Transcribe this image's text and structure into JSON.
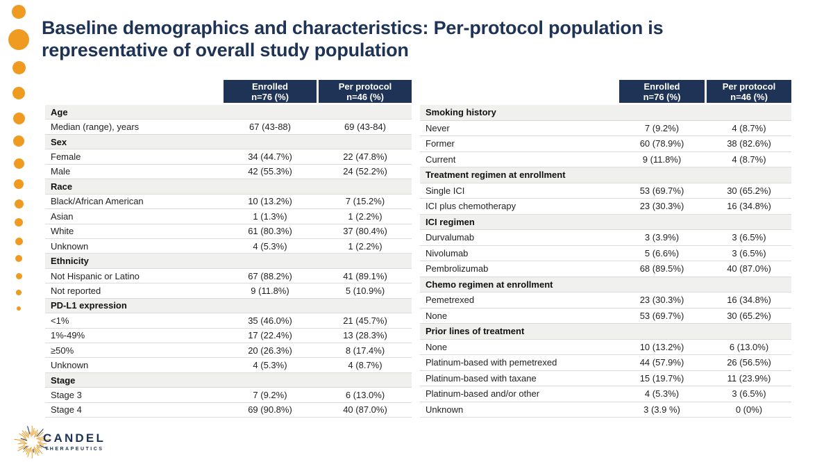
{
  "title": "Baseline demographics and characteristics: Per-protocol population is representative of overall study population",
  "columns": {
    "enrolled_top": "Enrolled",
    "enrolled_bottom": "n=76 (%)",
    "per_protocol_top": "Per protocol",
    "per_protocol_bottom": "n=46 (%)"
  },
  "tables": {
    "left": [
      {
        "section": "Age"
      },
      {
        "label": "Median (range), years",
        "enrolled": "67 (43-88)",
        "per_protocol": "69 (43-84)"
      },
      {
        "section": "Sex"
      },
      {
        "label": "Female",
        "enrolled": "34 (44.7%)",
        "per_protocol": "22 (47.8%)"
      },
      {
        "label": "Male",
        "enrolled": "42 (55.3%)",
        "per_protocol": "24 (52.2%)"
      },
      {
        "section": "Race"
      },
      {
        "label": "Black/African American",
        "enrolled": "10 (13.2%)",
        "per_protocol": "7 (15.2%)"
      },
      {
        "label": "Asian",
        "enrolled": "1 (1.3%)",
        "per_protocol": "1 (2.2%)"
      },
      {
        "label": "White",
        "enrolled": "61 (80.3%)",
        "per_protocol": "37 (80.4%)"
      },
      {
        "label": "Unknown",
        "enrolled": "4 (5.3%)",
        "per_protocol": "1 (2.2%)"
      },
      {
        "section": "Ethnicity"
      },
      {
        "label": "Not Hispanic or Latino",
        "enrolled": "67 (88.2%)",
        "per_protocol": "41 (89.1%)"
      },
      {
        "label": "Not reported",
        "enrolled": "9 (11.8%)",
        "per_protocol": "5 (10.9%)"
      },
      {
        "section": "PD-L1 expression"
      },
      {
        "label": "<1%",
        "enrolled": "35 (46.0%)",
        "per_protocol": "21 (45.7%)"
      },
      {
        "label": "1%-49%",
        "enrolled": "17 (22.4%)",
        "per_protocol": "13 (28.3%)"
      },
      {
        "label": "≥50%",
        "enrolled": "20 (26.3%)",
        "per_protocol": "8 (17.4%)"
      },
      {
        "label": "Unknown",
        "enrolled": "4 (5.3%)",
        "per_protocol": "4 (8.7%)"
      },
      {
        "section": "Stage"
      },
      {
        "label": "Stage 3",
        "enrolled": "7 (9.2%)",
        "per_protocol": "6 (13.0%)"
      },
      {
        "label": "Stage 4",
        "enrolled": "69 (90.8%)",
        "per_protocol": "40 (87.0%)"
      }
    ],
    "right": [
      {
        "section": "Smoking history"
      },
      {
        "label": "Never",
        "enrolled": "7 (9.2%)",
        "per_protocol": "4 (8.7%)"
      },
      {
        "label": "Former",
        "enrolled": "60 (78.9%)",
        "per_protocol": "38 (82.6%)"
      },
      {
        "label": "Current",
        "enrolled": "9 (11.8%)",
        "per_protocol": "4 (8.7%)"
      },
      {
        "section": "Treatment regimen at enrollment"
      },
      {
        "label": "Single ICI",
        "enrolled": "53 (69.7%)",
        "per_protocol": "30 (65.2%)"
      },
      {
        "label": "ICI plus chemotherapy",
        "enrolled": "23 (30.3%)",
        "per_protocol": "16 (34.8%)"
      },
      {
        "section": "ICI regimen"
      },
      {
        "label": "Durvalumab",
        "enrolled": "3 (3.9%)",
        "per_protocol": "3 (6.5%)"
      },
      {
        "label": "Nivolumab",
        "enrolled": "5 (6.6%)",
        "per_protocol": "3 (6.5%)"
      },
      {
        "label": "Pembrolizumab",
        "enrolled": "68 (89.5%)",
        "per_protocol": "40 (87.0%)"
      },
      {
        "section": "Chemo regimen at enrollment"
      },
      {
        "label": "Pemetrexed",
        "enrolled": "23 (30.3%)",
        "per_protocol": "16 (34.8%)"
      },
      {
        "label": "None",
        "enrolled": "53 (69.7%)",
        "per_protocol": "30 (65.2%)"
      },
      {
        "section": "Prior lines of treatment"
      },
      {
        "label": "None",
        "enrolled": "10 (13.2%)",
        "per_protocol": "6 (13.0%)"
      },
      {
        "label": "Platinum-based with pemetrexed",
        "enrolled": "44 (57.9%)",
        "per_protocol": "26 (56.5%)"
      },
      {
        "label": "Platinum-based with taxane",
        "enrolled": "15 (19.7%)",
        "per_protocol": "11 (23.9%)"
      },
      {
        "label": "Platinum-based and/or other",
        "enrolled": "4 (5.3%)",
        "per_protocol": "3 (6.5%)"
      },
      {
        "label": "Unknown",
        "enrolled": "3 (3.9 %)",
        "per_protocol": "0 (0%)"
      }
    ]
  },
  "logo": {
    "brand": "CANDEL",
    "tagline": "THERAPEUTICS"
  },
  "colors": {
    "navy": "#1e3355",
    "orange": "#ef9b22",
    "section_bg": "#f0f0ee",
    "hairline": "#dbdbdb"
  }
}
